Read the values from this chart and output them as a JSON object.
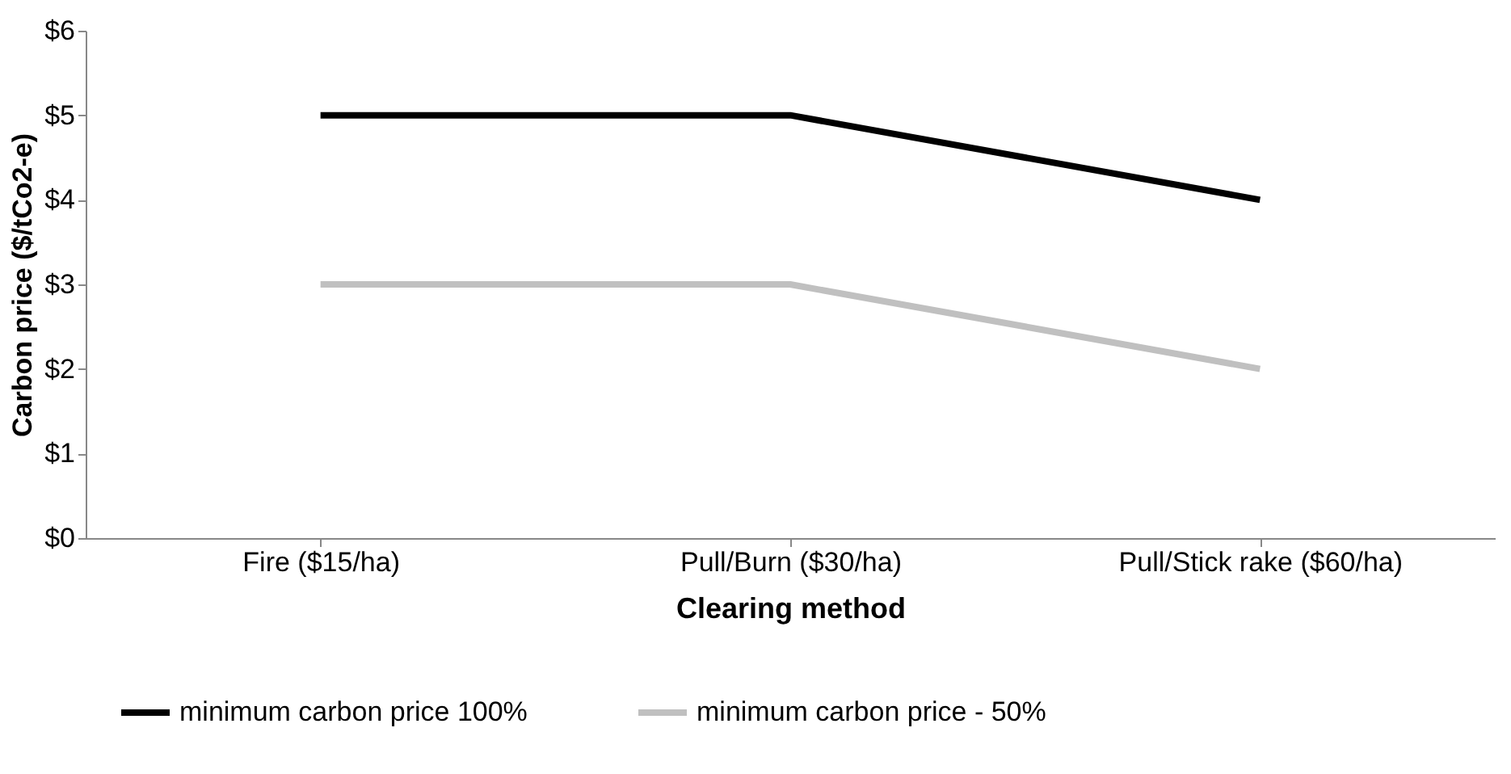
{
  "chart_data": {
    "type": "line",
    "xlabel": "Clearing method",
    "ylabel": "Carbon price ($/tCo2-e)",
    "categories": [
      "Fire ($15/ha)",
      "Pull/Burn ($30/ha)",
      "Pull/Stick rake ($60/ha)"
    ],
    "series": [
      {
        "name": "minimum carbon price 100%",
        "color": "#000000",
        "values": [
          5,
          5,
          4
        ]
      },
      {
        "name": "minimum carbon price - 50%",
        "color": "#c0c0c0",
        "values": [
          3,
          3,
          2
        ]
      }
    ],
    "ylim": [
      0,
      6
    ],
    "yticks": [
      {
        "value": 0,
        "label": "$0"
      },
      {
        "value": 1,
        "label": "$1"
      },
      {
        "value": 2,
        "label": "$2"
      },
      {
        "value": 3,
        "label": "$3"
      },
      {
        "value": 4,
        "label": "$4"
      },
      {
        "value": 5,
        "label": "$5"
      },
      {
        "value": 6,
        "label": "$6"
      }
    ],
    "grid": false,
    "legend": "bottom",
    "marker": "none",
    "line_style": "solid"
  }
}
